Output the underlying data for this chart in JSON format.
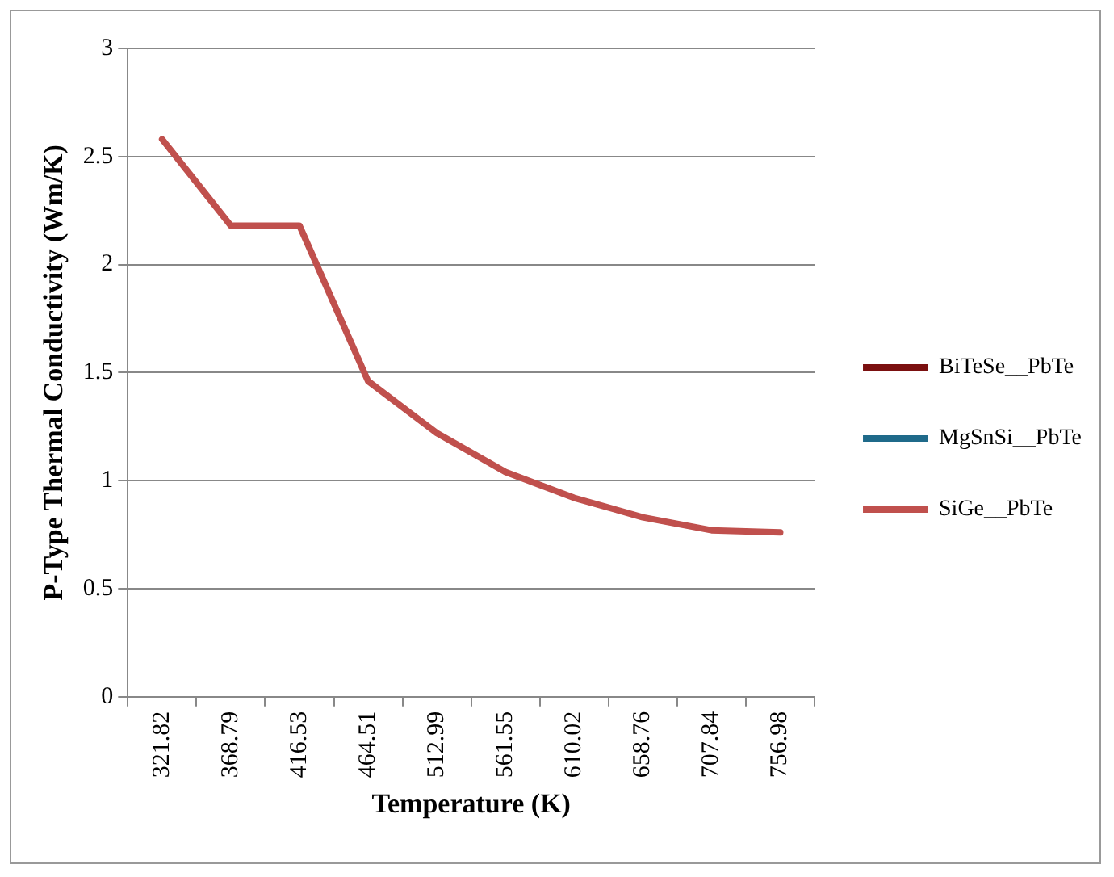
{
  "chart_data": {
    "type": "line",
    "xlabel": "Temperature (K)",
    "ylabel": "P-Type Thermal Conductivity (Wm/K)",
    "categories": [
      "321.82",
      "368.79",
      "416.53",
      "464.51",
      "512.99",
      "561.55",
      "610.02",
      "658.76",
      "707.84",
      "756.98"
    ],
    "ylim": [
      0,
      3
    ],
    "yticks": [
      0,
      0.5,
      1,
      1.5,
      2,
      2.5,
      3
    ],
    "grid": "y",
    "legend": "right",
    "marker": "none",
    "line_style": "solid",
    "series": [
      {
        "name": "BiTeSe__PbTe",
        "color": "#7b1010",
        "values": [
          null,
          null,
          null,
          null,
          null,
          null,
          null,
          null,
          null,
          null
        ]
      },
      {
        "name": "MgSnSi__PbTe",
        "color": "#1f6a8a",
        "values": [
          null,
          null,
          null,
          null,
          null,
          null,
          null,
          null,
          null,
          null
        ]
      },
      {
        "name": "SiGe__PbTe",
        "color": "#c0504d",
        "values": [
          2.58,
          2.18,
          2.18,
          1.46,
          1.22,
          1.04,
          0.92,
          0.83,
          0.77,
          0.76
        ]
      }
    ]
  }
}
